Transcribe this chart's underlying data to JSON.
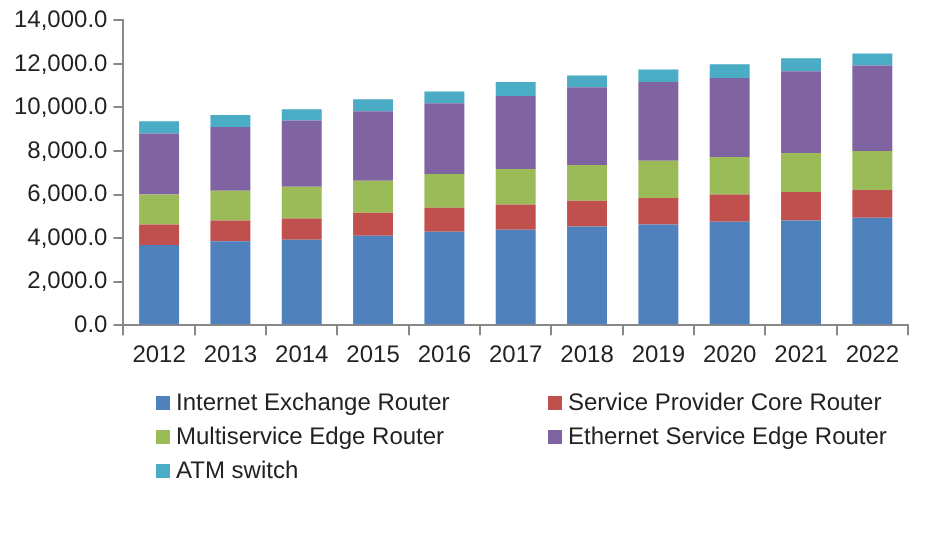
{
  "chart_data": {
    "type": "bar",
    "stacked": true,
    "categories": [
      "2012",
      "2013",
      "2014",
      "2015",
      "2016",
      "2017",
      "2018",
      "2019",
      "2020",
      "2021",
      "2022"
    ],
    "ylim": [
      0,
      14000
    ],
    "yticks": [
      {
        "value": 0,
        "label": "0.0"
      },
      {
        "value": 2000,
        "label": "2,000.0"
      },
      {
        "value": 4000,
        "label": "4,000.0"
      },
      {
        "value": 6000,
        "label": "6,000.0"
      },
      {
        "value": 8000,
        "label": "8,000.0"
      },
      {
        "value": 10000,
        "label": "10,000.0"
      },
      {
        "value": 12000,
        "label": "12,000.0"
      },
      {
        "value": 14000,
        "label": "14,000.0"
      }
    ],
    "grid": false,
    "legend": "bottom",
    "series": [
      {
        "name": "Internet Exchange Router",
        "color": "#4f81bd",
        "values": [
          3680,
          3860,
          3930,
          4110,
          4290,
          4380,
          4530,
          4630,
          4750,
          4810,
          4930
        ]
      },
      {
        "name": "Service Provider Core Router",
        "color": "#c0504d",
        "values": [
          950,
          950,
          970,
          1060,
          1100,
          1160,
          1190,
          1210,
          1250,
          1310,
          1280
        ]
      },
      {
        "name": "Multiservice Edge Router",
        "color": "#9bbb59",
        "values": [
          1370,
          1370,
          1460,
          1460,
          1550,
          1640,
          1640,
          1710,
          1730,
          1790,
          1790
        ]
      },
      {
        "name": "Ethernet Service Edge Router",
        "color": "#8064a2",
        "values": [
          2800,
          2920,
          3040,
          3200,
          3250,
          3350,
          3570,
          3620,
          3620,
          3750,
          3930
        ]
      },
      {
        "name": "ATM switch",
        "color": "#4bacc6",
        "values": [
          570,
          550,
          520,
          550,
          550,
          640,
          540,
          580,
          640,
          600,
          550
        ]
      }
    ]
  }
}
